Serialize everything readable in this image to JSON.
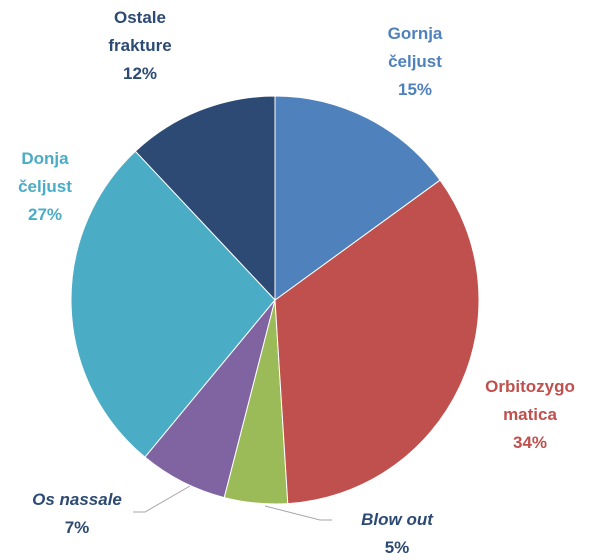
{
  "chart_data": {
    "type": "pie",
    "categories": [
      "Gornja čeljust",
      "Orbitozygomatica",
      "Blow out",
      "Os nassale",
      "Donja čeljust",
      "Ostale frakture"
    ],
    "values": [
      15,
      34,
      5,
      7,
      27,
      12
    ],
    "value_labels": [
      "15%",
      "34%",
      "5%",
      "7%",
      "27%",
      "12%"
    ],
    "colors": [
      "#4f81bd",
      "#c0504d",
      "#9bbb59",
      "#8064a2",
      "#4bacc6",
      "#2c4a74"
    ]
  }
}
